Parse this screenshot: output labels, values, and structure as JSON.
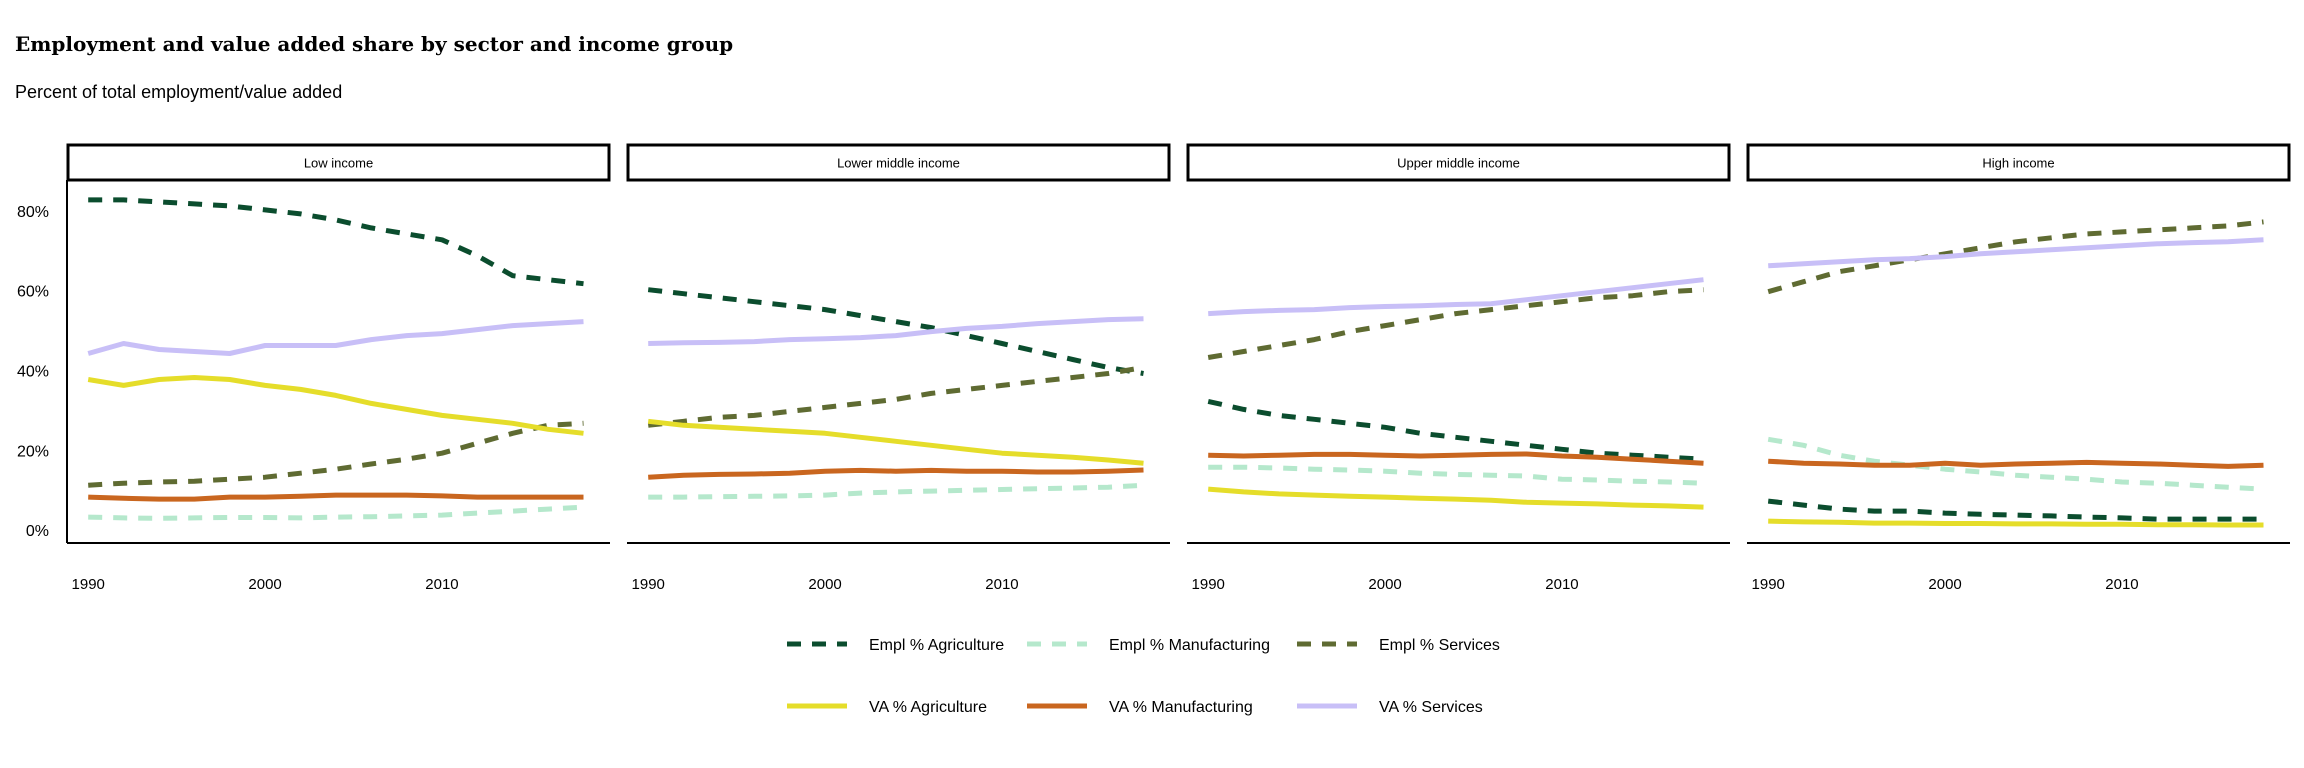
{
  "title": "Employment and value added share by sector and income group",
  "subtitle": "Percent of total employment/value added",
  "chart_data": {
    "type": "line",
    "facets": [
      "Low income",
      "Lower middle income",
      "Upper middle income",
      "High income"
    ],
    "x_ticks": [
      1990,
      2000,
      2010
    ],
    "y_ticks": [
      0,
      20,
      40,
      60,
      80
    ],
    "y_tick_labels": [
      "0%",
      "20%",
      "40%",
      "60%",
      "80%"
    ],
    "xlim": [
      1988.8,
      2019.5
    ],
    "ylim": [
      -3,
      88
    ],
    "x": [
      1990,
      1992,
      1994,
      1996,
      1998,
      2000,
      2002,
      2004,
      2006,
      2008,
      2010,
      2012,
      2014,
      2016,
      2018
    ],
    "series": [
      {
        "name": "Empl % Agriculture",
        "color": "#0b4d2e",
        "dashed": true,
        "panels": [
          [
            83,
            83,
            82.5,
            82,
            81.5,
            80.5,
            79.5,
            78,
            76,
            74.5,
            73,
            69,
            64,
            63,
            62
          ],
          [
            60.5,
            59.5,
            58.5,
            57.5,
            56.5,
            55.5,
            54,
            52.5,
            51,
            49,
            47,
            45,
            43,
            41,
            39.5
          ],
          [
            32.5,
            30.5,
            29,
            28,
            27,
            26,
            24.5,
            23.5,
            22.5,
            21.5,
            20.5,
            19.5,
            19,
            18.5,
            18
          ],
          [
            7.5,
            6.5,
            5.5,
            5,
            5,
            4.5,
            4.2,
            4,
            3.8,
            3.5,
            3.3,
            3,
            3,
            3,
            3
          ]
        ]
      },
      {
        "name": "Empl % Manufacturing",
        "color": "#b5e8cc",
        "dashed": true,
        "panels": [
          [
            3.5,
            3.3,
            3.2,
            3.3,
            3.4,
            3.4,
            3.3,
            3.5,
            3.6,
            3.8,
            4,
            4.5,
            5,
            5.5,
            6
          ],
          [
            8.5,
            8.5,
            8.6,
            8.7,
            8.8,
            9,
            9.5,
            9.8,
            10,
            10.2,
            10.4,
            10.6,
            10.8,
            11,
            11.5
          ],
          [
            16,
            16,
            15.8,
            15.5,
            15.3,
            15,
            14.5,
            14.2,
            14,
            13.8,
            13,
            12.8,
            12.5,
            12.3,
            12
          ],
          [
            23,
            21.5,
            19,
            17.5,
            16.5,
            15.5,
            14.8,
            14,
            13.5,
            13,
            12.3,
            12,
            11.5,
            11,
            10.5
          ]
        ]
      },
      {
        "name": "Empl % Services",
        "color": "#5f6b32",
        "dashed": true,
        "panels": [
          [
            11.5,
            12,
            12.3,
            12.5,
            13,
            13.5,
            14.5,
            15.5,
            16.8,
            18,
            19.5,
            22,
            24.5,
            26.5,
            27
          ],
          [
            26.5,
            27.5,
            28.5,
            29,
            30,
            31,
            32,
            33,
            34.5,
            35.5,
            36.5,
            37.5,
            38.5,
            39.5,
            41
          ],
          [
            43.5,
            45,
            46.5,
            48,
            50,
            51.5,
            53,
            54.5,
            55.5,
            56.5,
            57.5,
            58.5,
            59,
            60,
            60.5
          ],
          [
            60,
            62.5,
            65,
            66.5,
            68,
            69.5,
            71,
            72.5,
            73.5,
            74.5,
            75,
            75.5,
            76,
            76.5,
            77.5
          ]
        ]
      },
      {
        "name": "VA % Agriculture",
        "color": "#e5dd2a",
        "dashed": false,
        "panels": [
          [
            38,
            36.5,
            38,
            38.5,
            38,
            36.5,
            35.5,
            34,
            32,
            30.5,
            29,
            28,
            27,
            25.5,
            24.5
          ],
          [
            27.5,
            26.5,
            26,
            25.5,
            25,
            24.5,
            23.5,
            22.5,
            21.5,
            20.5,
            19.5,
            19,
            18.5,
            17.8,
            17
          ],
          [
            10.5,
            9.8,
            9.3,
            9,
            8.7,
            8.5,
            8.2,
            8,
            7.7,
            7.2,
            7,
            6.8,
            6.5,
            6.3,
            6
          ],
          [
            2.5,
            2.3,
            2.2,
            2,
            2,
            1.9,
            1.9,
            1.8,
            1.8,
            1.7,
            1.7,
            1.6,
            1.6,
            1.5,
            1.5
          ]
        ]
      },
      {
        "name": "VA % Manufacturing",
        "color": "#c9661f",
        "dashed": false,
        "panels": [
          [
            8.5,
            8.2,
            8,
            8,
            8.5,
            8.5,
            8.7,
            9,
            9,
            9,
            8.8,
            8.5,
            8.5,
            8.5,
            8.5
          ],
          [
            13.5,
            14,
            14.2,
            14.3,
            14.5,
            15,
            15.2,
            15,
            15.2,
            15,
            15,
            14.8,
            14.8,
            15,
            15.3
          ],
          [
            19,
            18.8,
            19,
            19.2,
            19.2,
            19,
            18.8,
            19,
            19.2,
            19.3,
            18.8,
            18.5,
            18,
            17.5,
            17
          ],
          [
            17.5,
            17,
            16.8,
            16.5,
            16.5,
            17,
            16.5,
            16.8,
            17,
            17.2,
            17,
            16.8,
            16.5,
            16.2,
            16.5
          ]
        ]
      },
      {
        "name": "VA % Services",
        "color": "#c8bff7",
        "dashed": false,
        "panels": [
          [
            44.5,
            47,
            45.5,
            45,
            44.5,
            46.5,
            46.5,
            46.5,
            48,
            49,
            49.5,
            50.5,
            51.5,
            52,
            52.5
          ],
          [
            47,
            47.2,
            47.3,
            47.5,
            48,
            48.2,
            48.5,
            49,
            50,
            50.8,
            51.3,
            52,
            52.5,
            53,
            53.2
          ],
          [
            54.5,
            55,
            55.3,
            55.5,
            56,
            56.3,
            56.5,
            56.8,
            57,
            58,
            59,
            60,
            61,
            62,
            63
          ],
          [
            66.5,
            67,
            67.5,
            68,
            68.3,
            68.8,
            69.5,
            70,
            70.5,
            71,
            71.5,
            72,
            72.3,
            72.5,
            73
          ]
        ]
      }
    ],
    "grid": false,
    "legend_position": "bottom"
  }
}
